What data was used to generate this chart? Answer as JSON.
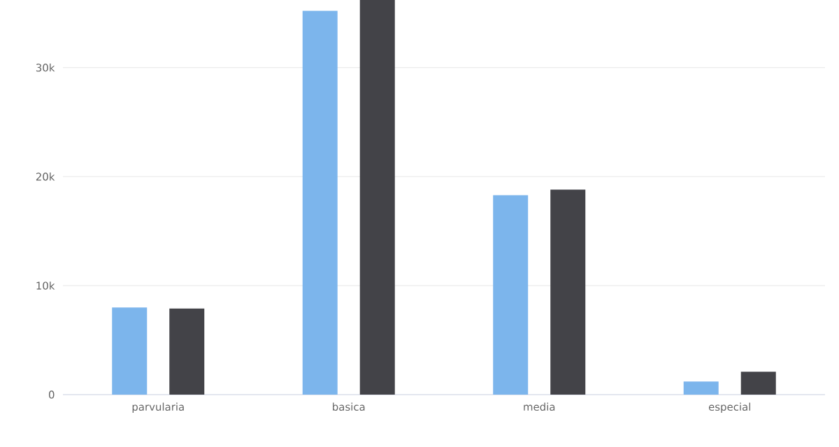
{
  "chart_data": {
    "type": "bar",
    "categories": [
      "parvularia",
      "basica",
      "media",
      "especial"
    ],
    "series": [
      {
        "color": "#7cb5ec",
        "values": [
          8000,
          35200,
          18300,
          1200
        ]
      },
      {
        "color": "#434348",
        "values": [
          7900,
          36200,
          18800,
          2100
        ]
      }
    ],
    "ylim": [
      0,
      36200
    ],
    "yticks": [
      {
        "value": 0,
        "label": "0"
      },
      {
        "value": 10000,
        "label": "10k"
      },
      {
        "value": 20000,
        "label": "20k"
      },
      {
        "value": 30000,
        "label": "30k"
      }
    ],
    "grid": "y"
  }
}
